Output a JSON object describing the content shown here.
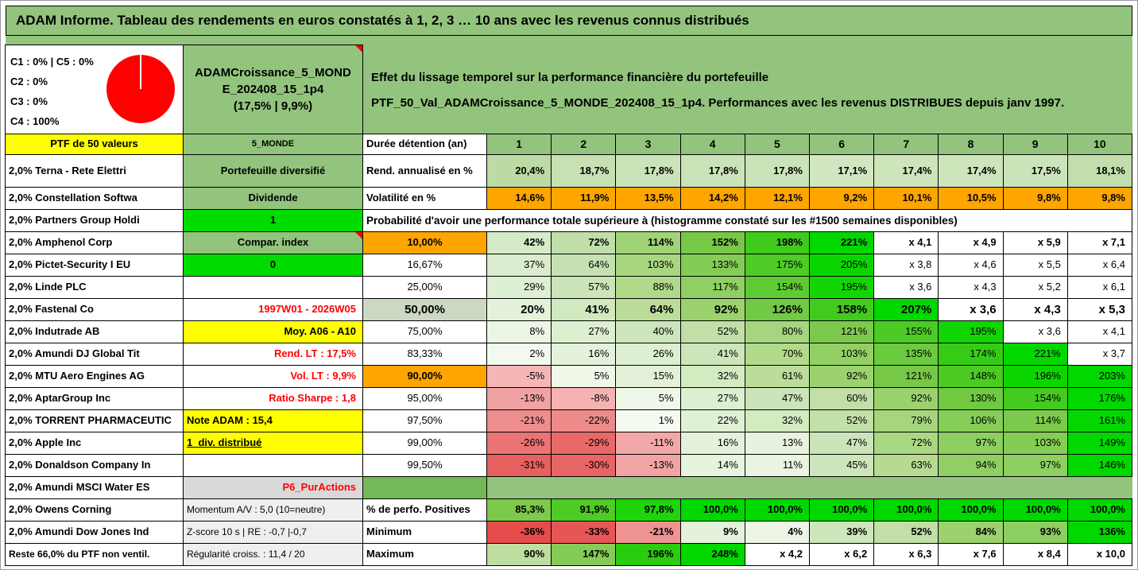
{
  "title": "ADAM Informe. Tableau des rendements en euros constatés à 1, 2, 3 … 10 ans avec les revenus connus distribués",
  "colors": {
    "page_green": "#93c47d",
    "yellow": "#ffff00",
    "orange": "#ffa500",
    "bright_green": "#00dc00",
    "red_text": "#ff0000",
    "pie_red": "#fe0000"
  },
  "allocation": {
    "lines": [
      "C1 : 0% | C5 : 0%",
      "C2 : 0%",
      "C3 : 0%",
      "C4 : 100%"
    ],
    "pie": {
      "type": "pie",
      "labels": [
        "C1",
        "C2",
        "C3",
        "C4",
        "C5"
      ],
      "values": [
        0,
        0,
        0,
        100,
        0
      ],
      "color": "#fe0000"
    }
  },
  "left": {
    "ptf_header": "PTF de 50 valeurs",
    "holdings": [
      "2,0% Terna - Rete Elettri",
      "2,0% Constellation Softwa",
      "2,0% Partners Group Holdi",
      "2,0% Amphenol Corp",
      "2,0% Pictet-Security I EU",
      "2,0% Linde PLC",
      "2,0% Fastenal Co",
      "2,0% Indutrade AB",
      "2,0% Amundi DJ Global Tit",
      "2,0% MTU Aero Engines AG",
      "2,0% AptarGroup Inc",
      "2,0% TORRENT PHARMACEUTIC",
      "2,0% Apple Inc",
      "2,0% Donaldson Company In",
      "2,0% Amundi MSCI Water ES",
      "2,0% Owens Corning",
      "2,0% Amundi Dow Jones Ind",
      "Reste 66,0% du PTF non ventil."
    ]
  },
  "portfolio": {
    "name_display": "ADAMCroissance_5_MOND\nE_202408_15_1p4\n(17,5% | 9,9%)",
    "cells": [
      {
        "text": "5_MONDE",
        "bg": "#93c47d",
        "align": "center",
        "size": 11
      },
      {
        "text": "Portefeuille diversifié",
        "bg": "#93c47d",
        "align": "center"
      },
      {
        "text": "Dividende",
        "bg": "#93c47d",
        "align": "center"
      },
      {
        "text": "1",
        "bg": "#00dc00",
        "align": "center"
      },
      {
        "text": "Compar. index",
        "bg": "#93c47d",
        "align": "center",
        "marker": true
      },
      {
        "text": "0",
        "bg": "#00dc00",
        "align": "center"
      },
      {
        "text": "",
        "bg": "#ffffff",
        "align": "center"
      },
      {
        "text": "1997W01 - 2026W05",
        "bg": "#ffffff",
        "color": "#ff0000",
        "align": "right"
      },
      {
        "text": "Moy. A06 - A10",
        "bg": "#ffff00",
        "align": "right"
      },
      {
        "text": "Rend. LT : 17,5%",
        "bg": "#ffffff",
        "color": "#ff0000",
        "align": "right"
      },
      {
        "text": "Vol. LT : 9,9%",
        "bg": "#ffffff",
        "color": "#ff0000",
        "align": "right"
      },
      {
        "text": "Ratio Sharpe : 1,8",
        "bg": "#ffffff",
        "color": "#ff0000",
        "align": "right"
      },
      {
        "text": "Note ADAM : 15,4",
        "bg": "#ffff00",
        "align": "left"
      },
      {
        "text": "1_div. distribué",
        "bg": "#ffff00",
        "align": "left",
        "underline": true
      },
      {
        "text": "",
        "bg": "#ffffff",
        "align": "center"
      },
      {
        "text": "P6_PurActions",
        "bg": "#d9d9d9",
        "color": "#ff0000",
        "align": "right"
      },
      {
        "text": "Momentum A/V : 5,0 (10=neutre)",
        "bg": "#efefef",
        "align": "left",
        "size": 12,
        "weight": "normal"
      },
      {
        "text": "Z-score 10 s | RE : -0,7 |-0,7",
        "bg": "#efefef",
        "align": "left",
        "size": 12,
        "weight": "normal"
      },
      {
        "text": "Régularité croiss. : 11,4 / 20",
        "bg": "#efefef",
        "align": "left",
        "size": 12,
        "weight": "normal"
      }
    ]
  },
  "main": {
    "description_line1": "Effet du lissage temporel sur la performance financière du portefeuille",
    "description_line2": "PTF_50_Val_ADAMCroissance_5_MONDE_202408_15_1p4. Performances avec les revenus DISTRIBUES depuis janv 1997.",
    "years": [
      "1",
      "2",
      "3",
      "4",
      "5",
      "6",
      "7",
      "8",
      "9",
      "10"
    ],
    "rows": [
      {
        "kind": "years",
        "label": "Durée détention (an)"
      },
      {
        "kind": "data",
        "label": "Rend. annualisé en %",
        "label_bold": true,
        "values_bold": true,
        "values": [
          "20,4%",
          "18,7%",
          "17,8%",
          "17,8%",
          "17,8%",
          "17,1%",
          "17,4%",
          "17,4%",
          "17,5%",
          "18,1%"
        ],
        "bg": [
          "#bcdba4",
          "#c7e1b2",
          "#cbe3b8",
          "#cbe3b8",
          "#cbe3b8",
          "#d2e7c1",
          "#cee5bc",
          "#cee5bc",
          "#cce4ba",
          "#c2deac"
        ]
      },
      {
        "kind": "data",
        "label": "Volatilité en %",
        "label_bold": true,
        "values_bold": true,
        "values": [
          "14,6%",
          "11,9%",
          "13,5%",
          "14,2%",
          "12,1%",
          "9,2%",
          "10,1%",
          "10,5%",
          "9,8%",
          "9,8%"
        ],
        "bg": [
          "#ffa500",
          "#ffa500",
          "#ffa500",
          "#ffa500",
          "#ffa500",
          "#ffa500",
          "#ffa500",
          "#ffa500",
          "#ffa500",
          "#ffa500"
        ]
      },
      {
        "kind": "span",
        "text": "Probabilité d'avoir une performance totale supérieure à (histogramme constaté sur les #1500 semaines disponibles)"
      },
      {
        "kind": "data",
        "label": "10,00%",
        "label_bg": "#ffa500",
        "label_align": "center",
        "label_bold": true,
        "values_bold": true,
        "values": [
          "42%",
          "72%",
          "114%",
          "152%",
          "198%",
          "221%",
          "x 4,1",
          "x 4,9",
          "x 5,9",
          "x 7,1"
        ],
        "bg": [
          "#d5eac6",
          "#c0deaa",
          "#a0d377",
          "#77c847",
          "#3fcb1c",
          "#00d800",
          "#ffffff",
          "#ffffff",
          "#ffffff",
          "#ffffff"
        ]
      },
      {
        "kind": "data",
        "label": "16,67%",
        "label_align": "center",
        "values": [
          "37%",
          "64%",
          "103%",
          "133%",
          "175%",
          "205%",
          "x 3,8",
          "x 4,6",
          "x 5,5",
          "x 6,4"
        ],
        "bg": [
          "#daeccd",
          "#c6e1b1",
          "#a8d680",
          "#84cc55",
          "#4ecb27",
          "#09d600",
          "#ffffff",
          "#ffffff",
          "#ffffff",
          "#ffffff"
        ]
      },
      {
        "kind": "data",
        "label": "25,00%",
        "label_align": "center",
        "values": [
          "29%",
          "57%",
          "88%",
          "117%",
          "154%",
          "195%",
          "x 3,6",
          "x 4,3",
          "x 5,2",
          "x 6,1"
        ],
        "bg": [
          "#def0d3",
          "#cbe4b8",
          "#b0d98a",
          "#90cf63",
          "#5ecb33",
          "#14d504",
          "#ffffff",
          "#ffffff",
          "#ffffff",
          "#ffffff"
        ]
      },
      {
        "kind": "data",
        "label": "50,00%",
        "label_bg": "#ccd8c2",
        "label_align": "center",
        "label_bold": true,
        "values_bold": true,
        "big": true,
        "values": [
          "20%",
          "41%",
          "64%",
          "92%",
          "126%",
          "158%",
          "207%",
          "x 3,6",
          "x 4,3",
          "x 5,3"
        ],
        "bg": [
          "#e4f2da",
          "#d2e8c0",
          "#bbdd99",
          "#9cd26e",
          "#72c945",
          "#41cb1e",
          "#00d800",
          "#ffffff",
          "#ffffff",
          "#ffffff"
        ]
      },
      {
        "kind": "data",
        "label": "75,00%",
        "label_align": "center",
        "values": [
          "8%",
          "27%",
          "40%",
          "52%",
          "80%",
          "121%",
          "155%",
          "195%",
          "x 3,6",
          "x 4,1"
        ],
        "bg": [
          "#ecf6e5",
          "#dcefd0",
          "#cde5ba",
          "#c1dfa6",
          "#a5d57e",
          "#7cc94e",
          "#4ccb26",
          "#10d500",
          "#ffffff",
          "#ffffff"
        ]
      },
      {
        "kind": "data",
        "label": "83,33%",
        "label_align": "center",
        "values": [
          "2%",
          "16%",
          "26%",
          "41%",
          "70%",
          "103%",
          "135%",
          "174%",
          "221%",
          "x 3,7"
        ],
        "bg": [
          "#f2f9ee",
          "#e5f2db",
          "#dcefd0",
          "#cde5ba",
          "#b1da8b",
          "#92d065",
          "#6bca3d",
          "#36cc16",
          "#00d800",
          "#ffffff"
        ]
      },
      {
        "kind": "data",
        "label": "90,00%",
        "label_bg": "#ffa500",
        "label_align": "center",
        "label_bold": true,
        "values": [
          "-5%",
          "5%",
          "15%",
          "32%",
          "61%",
          "92%",
          "121%",
          "148%",
          "196%",
          "203%"
        ],
        "bg": [
          "#f5b6b6",
          "#eef7e8",
          "#e3f1d8",
          "#d4eac1",
          "#bbdd99",
          "#9cd26e",
          "#78c848",
          "#4ccb25",
          "#0cd600",
          "#00d800"
        ]
      },
      {
        "kind": "data",
        "label": "95,00%",
        "label_align": "center",
        "values": [
          "-13%",
          "-8%",
          "5%",
          "27%",
          "47%",
          "60%",
          "92%",
          "130%",
          "154%",
          "176%"
        ],
        "bg": [
          "#f1a2a2",
          "#f4b2b2",
          "#eef7e8",
          "#dcefd0",
          "#cce4b9",
          "#c1dfa6",
          "#9cd26e",
          "#70c941",
          "#45cb20",
          "#00d800"
        ]
      },
      {
        "kind": "data",
        "label": "97,50%",
        "label_align": "center",
        "values": [
          "-21%",
          "-22%",
          "1%",
          "22%",
          "32%",
          "52%",
          "79%",
          "106%",
          "114%",
          "161%"
        ],
        "bg": [
          "#ee8d8d",
          "#ed8a8a",
          "#f5faf1",
          "#e0f0d5",
          "#d4eac1",
          "#c2e0a8",
          "#a6d57e",
          "#86cd57",
          "#7dc94e",
          "#04d700"
        ]
      },
      {
        "kind": "data",
        "label": "99,00%",
        "label_align": "center",
        "values": [
          "-26%",
          "-29%",
          "-11%",
          "16%",
          "13%",
          "47%",
          "72%",
          "97%",
          "103%",
          "149%"
        ],
        "bg": [
          "#ea7474",
          "#e96969",
          "#f3a8a8",
          "#e5f2db",
          "#e7f3de",
          "#cce4b9",
          "#aad882",
          "#8dcf60",
          "#85cc55",
          "#00d800"
        ]
      },
      {
        "kind": "data",
        "label": "99,50%",
        "label_align": "center",
        "values": [
          "-31%",
          "-30%",
          "-13%",
          "14%",
          "11%",
          "45%",
          "63%",
          "94%",
          "97%",
          "146%"
        ],
        "bg": [
          "#e76060",
          "#e86565",
          "#f2a4a4",
          "#e6f3dd",
          "#e9f4e1",
          "#cde5ba",
          "#b6db90",
          "#90cf63",
          "#8dcf60",
          "#00d800"
        ]
      },
      {
        "kind": "gap",
        "bg": "#74b957"
      },
      {
        "kind": "data",
        "label": "% de perfo. Positives",
        "label_bold": true,
        "values_bold": true,
        "values": [
          "85,3%",
          "91,9%",
          "97,8%",
          "100,0%",
          "100,0%",
          "100,0%",
          "100,0%",
          "100,0%",
          "100,0%",
          "100,0%"
        ],
        "bg": [
          "#7cc94b",
          "#4ecb24",
          "#1ed40a",
          "#00d800",
          "#00d800",
          "#00d800",
          "#00d800",
          "#00d800",
          "#00d800",
          "#00d800"
        ]
      },
      {
        "kind": "data",
        "label": "Minimum",
        "label_bold": true,
        "values_bold": true,
        "values": [
          "-36%",
          "-33%",
          "-21%",
          "9%",
          "4%",
          "39%",
          "52%",
          "84%",
          "93%",
          "136%"
        ],
        "bg": [
          "#e64c4c",
          "#e75656",
          "#ef9292",
          "#e5f2db",
          "#edf6e6",
          "#cfe6bd",
          "#c1dfa6",
          "#9cd26e",
          "#8dcf60",
          "#00d800"
        ]
      },
      {
        "kind": "data",
        "label": "Maximum",
        "label_bold": true,
        "values_bold": true,
        "values": [
          "90%",
          "147%",
          "196%",
          "248%",
          "x 4,2",
          "x 6,2",
          "x 6,3",
          "x 7,6",
          "x 8,4",
          "x 10,0"
        ],
        "bg": [
          "#bedea1",
          "#85cc56",
          "#2acd0d",
          "#00d800",
          "#ffffff",
          "#ffffff",
          "#ffffff",
          "#ffffff",
          "#ffffff",
          "#ffffff"
        ]
      }
    ]
  }
}
